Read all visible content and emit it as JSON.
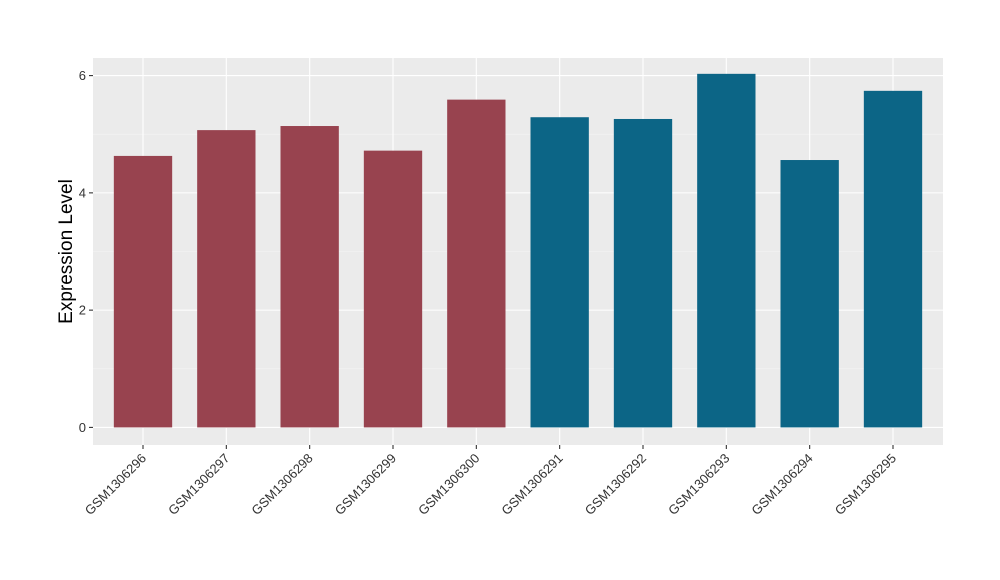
{
  "chart_data": {
    "type": "bar",
    "title": "",
    "xlabel": "",
    "ylabel": "Expression Level",
    "categories": [
      "GSM1306296",
      "GSM1306297",
      "GSM1306298",
      "GSM1306299",
      "GSM1306300",
      "GSM1306291",
      "GSM1306292",
      "GSM1306293",
      "GSM1306294",
      "GSM1306295"
    ],
    "values": [
      4.63,
      5.07,
      5.14,
      4.72,
      5.59,
      5.29,
      5.26,
      6.03,
      4.56,
      5.74
    ],
    "bar_colors": [
      "#98434f",
      "#98434f",
      "#98434f",
      "#98434f",
      "#98434f",
      "#0c6586",
      "#0c6586",
      "#0c6586",
      "#0c6586",
      "#0c6586"
    ],
    "ylim": [
      -0.3,
      6.3
    ],
    "yticks": [
      0,
      2,
      4,
      6
    ],
    "grid": true,
    "legend": "none"
  }
}
